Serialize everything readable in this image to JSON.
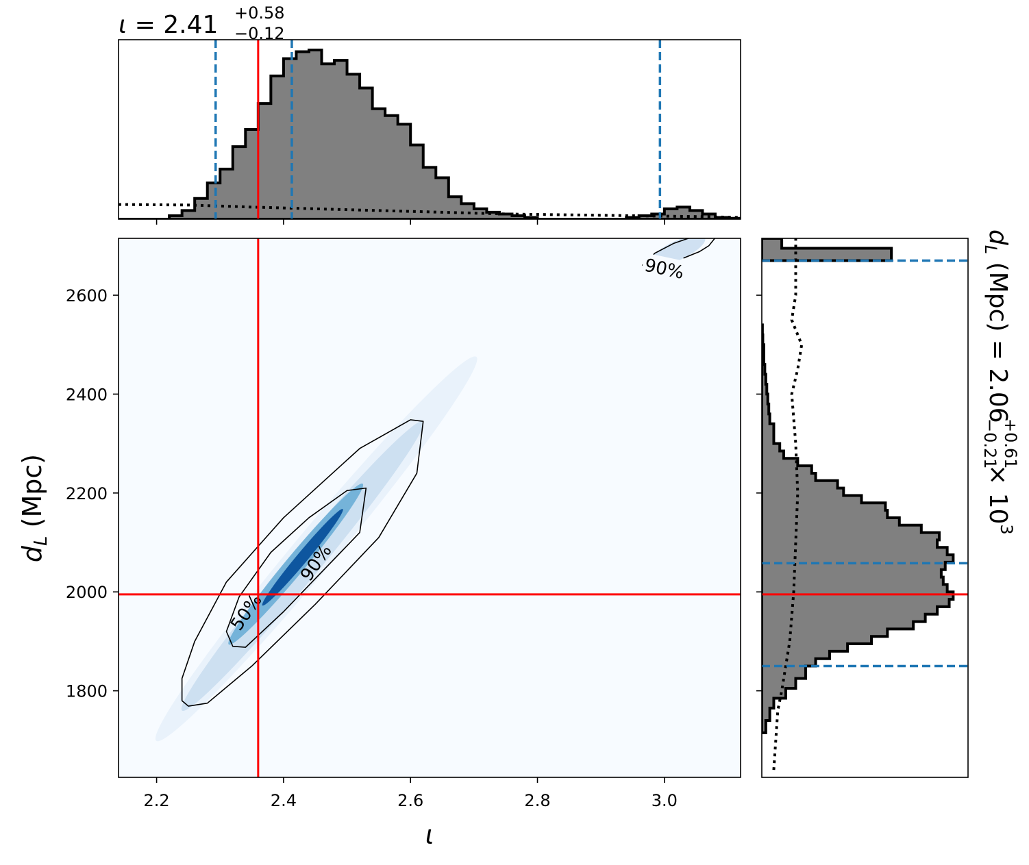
{
  "chart_data": {
    "type": "corner",
    "inclination": {
      "symbol": "ι",
      "axis_label": "ι",
      "median": "2.41",
      "plus": "+0.58",
      "minus": "−0.12",
      "injected": 2.36,
      "credible_lines": [
        2.293,
        2.413,
        2.993
      ],
      "xlim": [
        2.14,
        3.12
      ],
      "ticks": [
        2.2,
        2.4,
        2.6,
        2.8,
        3.0
      ],
      "tick_labels": [
        "2.2",
        "2.4",
        "2.6",
        "2.8",
        "3.0"
      ],
      "hist_bin_width": 0.02,
      "hist_start": 2.14,
      "hist_counts": [
        0,
        0,
        0,
        0,
        0.02,
        0.05,
        0.12,
        0.21,
        0.29,
        0.42,
        0.52,
        0.67,
        0.83,
        0.93,
        0.97,
        0.98,
        0.9,
        0.92,
        0.84,
        0.76,
        0.64,
        0.6,
        0.55,
        0.43,
        0.3,
        0.24,
        0.13,
        0.09,
        0.06,
        0.04,
        0.03,
        0.02,
        0.01,
        0,
        0,
        0,
        0,
        0,
        0,
        0,
        0.01,
        0.02,
        0.03,
        0.06,
        0.07,
        0.05,
        0.03,
        0.01,
        0.005,
        0
      ],
      "prior_x": [
        2.14,
        2.25,
        2.35,
        2.45,
        2.55,
        2.65,
        2.75,
        2.85,
        2.95,
        3.05,
        3.12
      ],
      "prior_y": [
        0.085,
        0.082,
        0.07,
        0.06,
        0.05,
        0.04,
        0.03,
        0.025,
        0.02,
        0.015,
        0.01
      ]
    },
    "distance": {
      "axis_label_main": "d",
      "axis_label_sub": "L",
      "axis_label_unit": " (Mpc)",
      "title_prefix_main": "d",
      "title_prefix_sub": "L",
      "title_prefix_rest": " (Mpc) = 2.06",
      "plus": "+0.61",
      "minus": "−0.21",
      "title_suffix": " × 10",
      "title_exp": "3",
      "injected": 1995,
      "credible_lines": [
        1850,
        2058,
        2670
      ],
      "ylim": [
        1625,
        2715
      ],
      "ticks": [
        1800,
        2000,
        2200,
        2400,
        2600
      ],
      "tick_labels": [
        "1800",
        "2000",
        "2200",
        "2400",
        "2600"
      ],
      "hist_edges": [
        1715,
        1740,
        1765,
        1785,
        1805,
        1825,
        1850,
        1865,
        1880,
        1895,
        1910,
        1925,
        1940,
        1955,
        1970,
        1985,
        2000,
        2015,
        2030,
        2045,
        2060,
        2075,
        2090,
        2105,
        2120,
        2135,
        2150,
        2165,
        2180,
        2195,
        2210,
        2225,
        2240,
        2255,
        2270,
        2285,
        2300,
        2320,
        2340,
        2360,
        2380,
        2400,
        2420,
        2440,
        2460,
        2480,
        2500,
        2520,
        2540
      ],
      "hist_counts": [
        0.02,
        0.04,
        0.06,
        0.12,
        0.17,
        0.22,
        0.27,
        0.34,
        0.43,
        0.55,
        0.63,
        0.76,
        0.82,
        0.88,
        0.94,
        0.96,
        0.93,
        0.91,
        0.9,
        0.92,
        0.96,
        0.93,
        0.88,
        0.89,
        0.8,
        0.69,
        0.63,
        0.62,
        0.5,
        0.41,
        0.38,
        0.27,
        0.25,
        0.18,
        0.11,
        0.09,
        0.06,
        0.06,
        0.04,
        0.035,
        0.03,
        0.025,
        0.02,
        0.015,
        0.01,
        0.01,
        0.005,
        0.003
      ],
      "hist_top_edges": [
        2670,
        2695,
        2715
      ],
      "hist_top_counts": [
        0.65,
        0.1
      ],
      "prior_y": [
        1640,
        1700,
        1760,
        1800,
        1850,
        1900,
        2000,
        2100,
        2200,
        2300,
        2350,
        2400,
        2450,
        2500,
        2550,
        2600,
        2650,
        2715
      ],
      "prior_x": [
        0.06,
        0.07,
        0.08,
        0.1,
        0.12,
        0.14,
        0.16,
        0.17,
        0.18,
        0.17,
        0.16,
        0.15,
        0.18,
        0.2,
        0.15,
        0.17,
        0.17,
        0.17
      ]
    },
    "joint": {
      "contour_labels": [
        "50%",
        "90%",
        "90%"
      ],
      "contour_label_positions": [
        [
          2.34,
          1960,
          -55
        ],
        [
          2.45,
          2060,
          -55
        ],
        [
          3.0,
          2655,
          12
        ]
      ],
      "outer_90": [
        [
          2.24,
          1780
        ],
        [
          2.25,
          1769
        ],
        [
          2.28,
          1775
        ],
        [
          2.35,
          1850
        ],
        [
          2.45,
          1975
        ],
        [
          2.55,
          2110
        ],
        [
          2.61,
          2240
        ],
        [
          2.62,
          2345
        ],
        [
          2.6,
          2348
        ],
        [
          2.52,
          2290
        ],
        [
          2.4,
          2150
        ],
        [
          2.31,
          2020
        ],
        [
          2.26,
          1900
        ],
        [
          2.24,
          1825
        ]
      ],
      "inner_50": [
        [
          2.32,
          1890
        ],
        [
          2.34,
          1888
        ],
        [
          2.4,
          1960
        ],
        [
          2.46,
          2040
        ],
        [
          2.52,
          2120
        ],
        [
          2.53,
          2210
        ],
        [
          2.5,
          2205
        ],
        [
          2.44,
          2150
        ],
        [
          2.38,
          2080
        ],
        [
          2.33,
          1990
        ],
        [
          2.31,
          1920
        ]
      ],
      "upper_90": [
        [
          2.965,
          2660
        ],
        [
          2.985,
          2685
        ],
        [
          3.015,
          2705
        ],
        [
          3.04,
          2716
        ]
      ],
      "upper_90b": [
        [
          3.03,
          2675
        ],
        [
          3.055,
          2688
        ],
        [
          3.07,
          2700
        ],
        [
          3.08,
          2716
        ]
      ],
      "density_center_line": [
        [
          2.24,
          1760
        ],
        [
          2.62,
          2345
        ]
      ],
      "density_peak": [
        2.43,
        2070
      ]
    },
    "colors": {
      "hist_fill": "#808080",
      "hist_edge": "#000000",
      "credible": "#1f77b4",
      "injected": "#ff0000",
      "background_cmap_low": "#f7fbff",
      "background_cmap_high": "#08306b"
    }
  }
}
